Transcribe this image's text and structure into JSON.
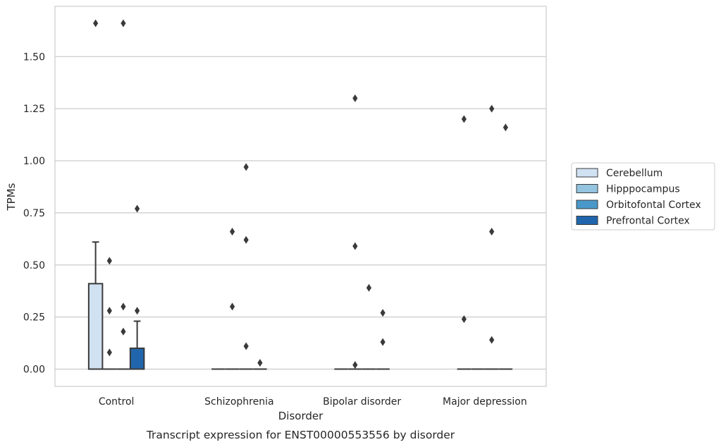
{
  "chart_data": {
    "type": "box",
    "caption": "Transcript expression for ENST00000553556 by disorder",
    "xlabel": "Disorder",
    "ylabel": "TPMs",
    "categories": [
      "Control",
      "Schizophrenia",
      "Bipolar disorder",
      "Major depression"
    ],
    "hue_order": [
      "Cerebellum",
      "Hipppocampus",
      "Orbitofontal Cortex",
      "Prefrontal Cortex"
    ],
    "ylim": [
      -0.08,
      1.75
    ],
    "yticks": [
      "0.00",
      "0.25",
      "0.50",
      "0.75",
      "1.00",
      "1.25",
      "1.50"
    ],
    "grid": true,
    "legend_position": "right",
    "colors": {
      "Cerebellum": "#d0e1f2",
      "Hipppocampus": "#94c4df",
      "Orbitofontal Cortex": "#4a98c9",
      "Prefrontal Cortex": "#2166ac",
      "line": "#3a3a3a",
      "grid": "#cccccc",
      "frame": "#cccccc"
    },
    "boxes": [
      {
        "category": "Control",
        "group": "Cerebellum",
        "q1": 0.0,
        "median": 0.0,
        "q3": 0.41,
        "whisker_low": 0.0,
        "whisker_high": 0.61,
        "outliers": [
          1.66
        ]
      },
      {
        "category": "Control",
        "group": "Hipppocampus",
        "q1": 0.0,
        "median": 0.0,
        "q3": 0.0,
        "whisker_low": 0.0,
        "whisker_high": 0.0,
        "outliers": [
          0.52,
          0.28,
          0.08
        ]
      },
      {
        "category": "Control",
        "group": "Orbitofontal Cortex",
        "q1": 0.0,
        "median": 0.0,
        "q3": 0.0,
        "whisker_low": 0.0,
        "whisker_high": 0.0,
        "outliers": [
          1.66,
          0.3,
          0.18
        ]
      },
      {
        "category": "Control",
        "group": "Prefrontal Cortex",
        "q1": 0.0,
        "median": 0.0,
        "q3": 0.1,
        "whisker_low": 0.0,
        "whisker_high": 0.23,
        "outliers": [
          0.77,
          0.28
        ]
      },
      {
        "category": "Schizophrenia",
        "group": "Cerebellum",
        "q1": 0.0,
        "median": 0.0,
        "q3": 0.0,
        "whisker_low": 0.0,
        "whisker_high": 0.0,
        "outliers": []
      },
      {
        "category": "Schizophrenia",
        "group": "Hipppocampus",
        "q1": 0.0,
        "median": 0.0,
        "q3": 0.0,
        "whisker_low": 0.0,
        "whisker_high": 0.0,
        "outliers": [
          0.66,
          0.3
        ]
      },
      {
        "category": "Schizophrenia",
        "group": "Orbitofontal Cortex",
        "q1": 0.0,
        "median": 0.0,
        "q3": 0.0,
        "whisker_low": 0.0,
        "whisker_high": 0.0,
        "outliers": [
          0.97,
          0.62,
          0.11
        ]
      },
      {
        "category": "Schizophrenia",
        "group": "Prefrontal Cortex",
        "q1": 0.0,
        "median": 0.0,
        "q3": 0.0,
        "whisker_low": 0.0,
        "whisker_high": 0.0,
        "outliers": [
          0.03
        ]
      },
      {
        "category": "Bipolar disorder",
        "group": "Cerebellum",
        "q1": 0.0,
        "median": 0.0,
        "q3": 0.0,
        "whisker_low": 0.0,
        "whisker_high": 0.0,
        "outliers": []
      },
      {
        "category": "Bipolar disorder",
        "group": "Hipppocampus",
        "q1": 0.0,
        "median": 0.0,
        "q3": 0.0,
        "whisker_low": 0.0,
        "whisker_high": 0.0,
        "outliers": [
          1.3,
          0.59,
          0.02
        ]
      },
      {
        "category": "Bipolar disorder",
        "group": "Orbitofontal Cortex",
        "q1": 0.0,
        "median": 0.0,
        "q3": 0.0,
        "whisker_low": 0.0,
        "whisker_high": 0.0,
        "outliers": [
          0.39
        ]
      },
      {
        "category": "Bipolar disorder",
        "group": "Prefrontal Cortex",
        "q1": 0.0,
        "median": 0.0,
        "q3": 0.0,
        "whisker_low": 0.0,
        "whisker_high": 0.0,
        "outliers": [
          0.27,
          0.13
        ]
      },
      {
        "category": "Major depression",
        "group": "Cerebellum",
        "q1": 0.0,
        "median": 0.0,
        "q3": 0.0,
        "whisker_low": 0.0,
        "whisker_high": 0.0,
        "outliers": [
          1.2,
          0.24
        ]
      },
      {
        "category": "Major depression",
        "group": "Hipppocampus",
        "q1": 0.0,
        "median": 0.0,
        "q3": 0.0,
        "whisker_low": 0.0,
        "whisker_high": 0.0,
        "outliers": []
      },
      {
        "category": "Major depression",
        "group": "Orbitofontal Cortex",
        "q1": 0.0,
        "median": 0.0,
        "q3": 0.0,
        "whisker_low": 0.0,
        "whisker_high": 0.0,
        "outliers": [
          1.25,
          0.66,
          0.14
        ]
      },
      {
        "category": "Major depression",
        "group": "Prefrontal Cortex",
        "q1": 0.0,
        "median": 0.0,
        "q3": 0.0,
        "whisker_low": 0.0,
        "whisker_high": 0.0,
        "outliers": [
          1.16
        ]
      }
    ]
  }
}
